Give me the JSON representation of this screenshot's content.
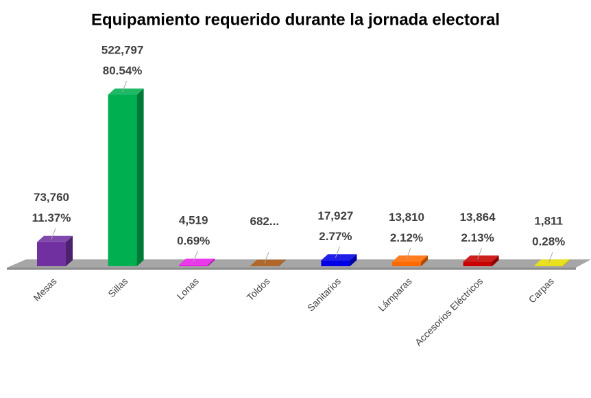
{
  "chart_data": {
    "type": "bar3d",
    "title": "Equipamiento requerido durante la jornada electoral",
    "categories": [
      "Mesas",
      "Sillas",
      "Lonas",
      "Toldos",
      "Sanitarios",
      "Lámparas",
      "Accesorios Eléctricos",
      "Carpas"
    ],
    "values": [
      73760,
      522797,
      4519,
      682,
      17927,
      13810,
      13864,
      1811
    ],
    "value_labels": [
      "73,760",
      "522,797",
      "4,519",
      "682...",
      "17,927",
      "13,810",
      "13,864",
      "1,811"
    ],
    "percent_labels": [
      "11.37%",
      "80.54%",
      "0.69%",
      null,
      "2.77%",
      "2.12%",
      "2.13%",
      "0.28%"
    ],
    "colors": [
      "#7030a0",
      "#00b050",
      "#e81ee8",
      "#a5520c",
      "#0000e6",
      "#ff6a00",
      "#c80000",
      "#e6dc00"
    ]
  }
}
